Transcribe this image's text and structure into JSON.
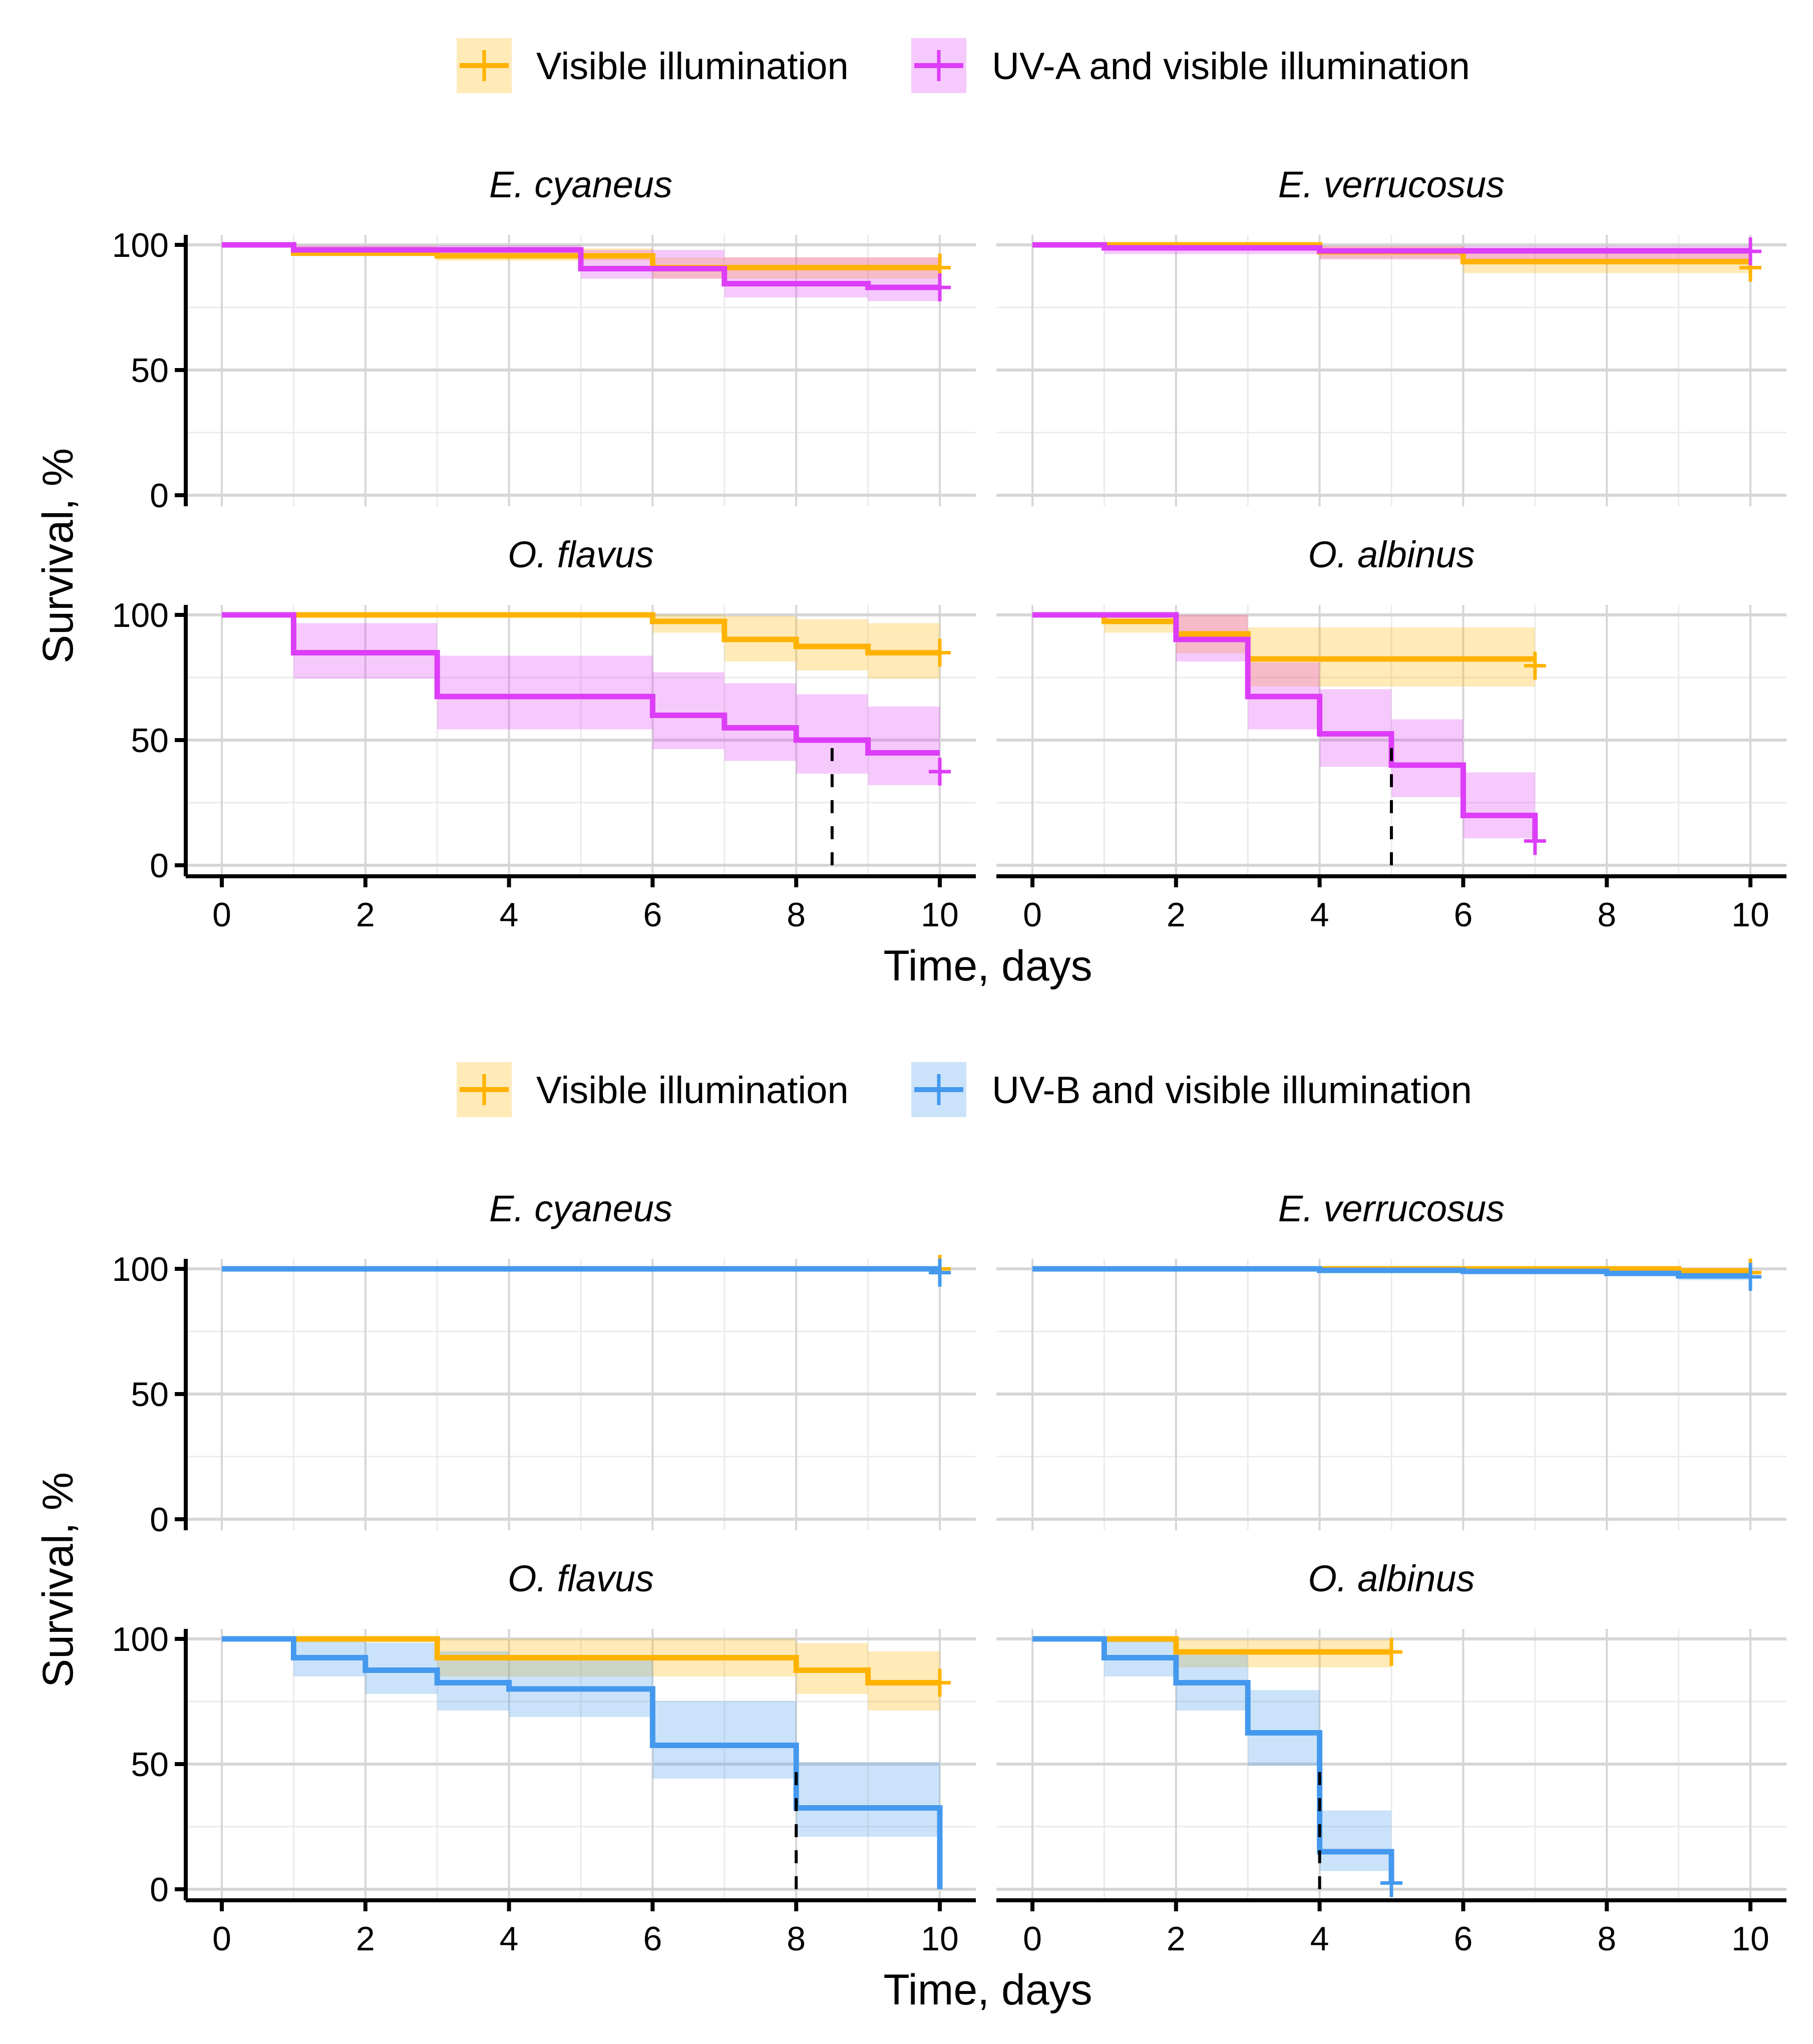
{
  "chart_data": [
    {
      "type": "line",
      "subtype": "kaplan-meier step",
      "legend": {
        "position": "top",
        "items": [
          {
            "name": "Visible illumination",
            "color": "#FFB300"
          },
          {
            "name": "UV-A and visible illumination",
            "color": "#DD3DF8"
          }
        ]
      },
      "ylabel": "Survival, %",
      "xlabel": "Time, days",
      "xlim": [
        0,
        10
      ],
      "ylim": [
        0,
        100
      ],
      "xticks": [
        "0",
        "2",
        "4",
        "6",
        "8",
        "10"
      ],
      "yticks": [
        "0",
        "50",
        "100"
      ],
      "grid": true,
      "panels": [
        {
          "title": "E. cyaneus",
          "median": null,
          "series": [
            {
              "steps": [
                [
                  0,
                  100
                ],
                [
                  1,
                  96.7
                ],
                [
                  3,
                  95.6
                ],
                [
                  6,
                  90.9
                ]
              ],
              "end": 10,
              "censor": [
                10,
                90.9
              ],
              "ci": [
                [
                  1,
                  3,
                  96,
                  99.5
                ],
                [
                  3,
                  6,
                  93.7,
                  98.6
                ],
                [
                  6,
                  10,
                  86.5,
                  95
                ]
              ]
            },
            {
              "steps": [
                [
                  0,
                  100
                ],
                [
                  1,
                  98
                ],
                [
                  5,
                  90.5
                ],
                [
                  7,
                  84.5
                ],
                [
                  9,
                  83
                ]
              ],
              "end": 10,
              "censor": [
                10,
                83
              ],
              "ci": [
                [
                  1,
                  5,
                  95.5,
                  99.8
                ],
                [
                  5,
                  7,
                  86.5,
                  98
                ],
                [
                  7,
                  9,
                  79,
                  95
                ],
                [
                  9,
                  10,
                  77.5,
                  95
                ]
              ]
            }
          ]
        },
        {
          "title": "E. verrucosus",
          "median": null,
          "series": [
            {
              "steps": [
                [
                  0,
                  100
                ],
                [
                  4,
                  97.2
                ],
                [
                  6,
                  93.3
                ]
              ],
              "end": 10,
              "censor": [
                10,
                90.9
              ],
              "ci": [
                [
                  4,
                  6,
                  94.5,
                  99.6
                ],
                [
                  6,
                  10,
                  88.7,
                  97.5
                ]
              ]
            },
            {
              "steps": [
                [
                  0,
                  100
                ],
                [
                  1,
                  98.8
                ],
                [
                  4,
                  97.6
                ]
              ],
              "end": 10,
              "censor": [
                10,
                97.4
              ],
              "ci": [
                [
                  1,
                  4,
                  96.3,
                  100
                ],
                [
                  4,
                  10,
                  94.2,
                  99.6
                ]
              ]
            }
          ]
        },
        {
          "title": "O. flavus",
          "median": 8.5,
          "series": [
            {
              "steps": [
                [
                  0,
                  100
                ],
                [
                  6,
                  97.4
                ],
                [
                  7,
                  90.2
                ],
                [
                  8,
                  87.4
                ],
                [
                  9,
                  84.9
                ]
              ],
              "end": 10,
              "censor": [
                10,
                84.9
              ],
              "ci": [
                [
                  6,
                  7,
                  92.9,
                  100
                ],
                [
                  7,
                  8,
                  81.4,
                  99.6
                ],
                [
                  8,
                  9,
                  77.8,
                  98.3
                ],
                [
                  9,
                  10,
                  74.5,
                  96.7
                ]
              ]
            },
            {
              "steps": [
                [
                  0,
                  100
                ],
                [
                  1,
                  84.9
                ],
                [
                  3,
                  67.4
                ],
                [
                  6,
                  59.9
                ],
                [
                  7,
                  54.9
                ],
                [
                  8,
                  50
                ],
                [
                  9,
                  44.9
                ]
              ],
              "end": 10,
              "censor": [
                10,
                37.4
              ],
              "ci": [
                [
                  1,
                  3,
                  74.5,
                  96.7
                ],
                [
                  3,
                  6,
                  54.3,
                  83.7
                ],
                [
                  6,
                  7,
                  46.4,
                  77.1
                ],
                [
                  7,
                  8,
                  41.7,
                  72.7
                ],
                [
                  8,
                  9,
                  36.6,
                  68.3
                ],
                [
                  9,
                  10,
                  32,
                  63.4
                ]
              ]
            }
          ]
        },
        {
          "title": "O. albinus",
          "median": 5,
          "series": [
            {
              "steps": [
                [
                  0,
                  100
                ],
                [
                  1,
                  97.4
                ],
                [
                  2,
                  92.4
                ],
                [
                  3,
                  82.4
                ]
              ],
              "end": 7,
              "censor": [
                7,
                79.7
              ],
              "ci": [
                [
                  1,
                  2,
                  92.9,
                  100
                ],
                [
                  2,
                  3,
                  84.7,
                  100
                ],
                [
                  3,
                  7,
                  71.4,
                  95
                ]
              ]
            },
            {
              "steps": [
                [
                  0,
                  100
                ],
                [
                  2,
                  90.2
                ],
                [
                  3,
                  67.4
                ],
                [
                  4,
                  52.5
                ],
                [
                  5,
                  40
                ],
                [
                  6,
                  19.9
                ],
                [
                  7,
                  9.7
                ]
              ],
              "end": 7,
              "censor": [
                7,
                9.7
              ],
              "ci": [
                [
                  2,
                  3,
                  81.4,
                  100
                ],
                [
                  3,
                  4,
                  54.3,
                  81
                ],
                [
                  4,
                  5,
                  39.3,
                  70.3
                ],
                [
                  5,
                  6,
                  27.2,
                  58.3
                ],
                [
                  6,
                  7,
                  10.8,
                  37.1
                ]
              ]
            }
          ]
        }
      ]
    },
    {
      "type": "line",
      "subtype": "kaplan-meier step",
      "legend": {
        "position": "top",
        "items": [
          {
            "name": "Visible illumination",
            "color": "#FFB300"
          },
          {
            "name": "UV-B and visible illumination",
            "color": "#4499EE"
          }
        ]
      },
      "ylabel": "Survival, %",
      "xlabel": "Time, days",
      "xlim": [
        0,
        10
      ],
      "ylim": [
        0,
        100
      ],
      "xticks": [
        "0",
        "2",
        "4",
        "6",
        "8",
        "10"
      ],
      "yticks": [
        "0",
        "50",
        "100"
      ],
      "grid": true,
      "panels": [
        {
          "title": "E. cyaneus",
          "median": null,
          "series": [
            {
              "steps": [
                [
                  0,
                  100
                ]
              ],
              "end": 10,
              "censor": [
                10,
                100
              ],
              "ci": []
            },
            {
              "steps": [
                [
                  0,
                  100
                ]
              ],
              "end": 10,
              "censor": [
                10,
                98.5
              ],
              "ci": []
            }
          ]
        },
        {
          "title": "E. verrucosus",
          "median": null,
          "series": [
            {
              "steps": [
                [
                  0,
                  100
                ],
                [
                  9,
                  99.2
                ]
              ],
              "end": 10,
              "censor": [
                10,
                98.5
              ],
              "ci": [
                [
                  9,
                  10,
                  97.5,
                  100
                ]
              ]
            },
            {
              "steps": [
                [
                  0,
                  100
                ],
                [
                  4,
                  99.4
                ],
                [
                  6,
                  99
                ],
                [
                  8,
                  98.2
                ],
                [
                  9,
                  97.2
                ]
              ],
              "end": 10,
              "censor": [
                10,
                96.8
              ],
              "ci": [
                [
                  9,
                  10,
                  95.5,
                  99.5
                ]
              ]
            }
          ]
        },
        {
          "title": "O. flavus",
          "median": 8,
          "series": [
            {
              "steps": [
                [
                  0,
                  100
                ],
                [
                  3,
                  92.5
                ],
                [
                  8,
                  87.5
                ],
                [
                  9,
                  82.5
                ]
              ],
              "end": 10,
              "censor": [
                10,
                82.5
              ],
              "ci": [
                [
                  1,
                  3,
                  98.7,
                  100
                ],
                [
                  3,
                  8,
                  85,
                  100
                ],
                [
                  8,
                  9,
                  78,
                  98.3
                ],
                [
                  9,
                  10,
                  71.4,
                  95
                ]
              ]
            },
            {
              "steps": [
                [
                  0,
                  100
                ],
                [
                  1,
                  92.5
                ],
                [
                  2,
                  87.5
                ],
                [
                  3,
                  82.5
                ],
                [
                  4,
                  80
                ],
                [
                  6,
                  57.5
                ],
                [
                  8,
                  32.5
                ],
                [
                  10,
                  0
                ]
              ],
              "end": 10,
              "censor": null,
              "ci": [
                [
                  1,
                  2,
                  85,
                  100
                ],
                [
                  2,
                  3,
                  78,
                  98.5
                ],
                [
                  3,
                  4,
                  71.4,
                  95
                ],
                [
                  4,
                  6,
                  68.8,
                  93.3
                ],
                [
                  6,
                  8,
                  44.2,
                  75.2
                ],
                [
                  8,
                  10,
                  21,
                  50.8
                ]
              ]
            }
          ]
        },
        {
          "title": "O. albinus",
          "median": 4,
          "series": [
            {
              "steps": [
                [
                  0,
                  100
                ],
                [
                  2,
                  94.8
                ]
              ],
              "end": 5,
              "censor": [
                5,
                94.8
              ],
              "ci": [
                [
                  1,
                  2,
                  98.6,
                  100
                ],
                [
                  2,
                  5,
                  88.6,
                  99.8
                ]
              ]
            },
            {
              "steps": [
                [
                  0,
                  100
                ],
                [
                  1,
                  92.5
                ],
                [
                  2,
                  82.5
                ],
                [
                  3,
                  62.5
                ],
                [
                  4,
                  15
                ],
                [
                  5,
                  2.5
                ]
              ],
              "end": 5,
              "censor": [
                5,
                2.5
              ],
              "ci": [
                [
                  1,
                  2,
                  85,
                  100
                ],
                [
                  2,
                  3,
                  71.4,
                  95
                ],
                [
                  3,
                  4,
                  49.3,
                  79.6
                ],
                [
                  4,
                  5,
                  7.3,
                  31.5
                ]
              ]
            }
          ]
        }
      ]
    }
  ]
}
